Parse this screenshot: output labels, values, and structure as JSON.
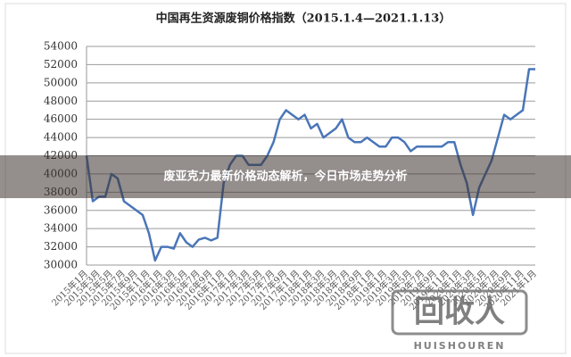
{
  "chart_data": {
    "type": "line",
    "title": "中国再生资源废铜价格指数（2015.1.4—2021.1.13）",
    "categories": [
      "2015年1月",
      null,
      "2015年3月",
      null,
      "2015年5月",
      null,
      "2015年7月",
      null,
      "2015年9月",
      null,
      "2015年11月",
      null,
      "2016年1月",
      null,
      "2016年3月",
      null,
      "2016年5月",
      null,
      "2016年7月",
      null,
      "2016年9月",
      null,
      "2016年11月",
      null,
      "2017年1月",
      null,
      "2017年3月",
      null,
      "2017年5月",
      null,
      "2017年7月",
      null,
      "2017年9月",
      null,
      "2017年11月",
      null,
      "2018年1月",
      null,
      "2018年3月",
      null,
      "2018年5月",
      null,
      "2018年7月",
      null,
      "2018年9月",
      null,
      "2018年11月",
      null,
      "2019年1月",
      null,
      "2019年3月",
      null,
      "2019年5月",
      null,
      "2019年7月",
      null,
      "2019年9月",
      null,
      "2019年11月",
      null,
      "2020年1月",
      null,
      "2020年3月",
      null,
      "2020年5月",
      null,
      "2020年7月",
      null,
      "2020年9月",
      null,
      "2020年11月",
      null,
      "2021年1月"
    ],
    "series": [
      {
        "name": "废铜价格指数",
        "color": "#4a76b8",
        "values": [
          42000,
          37000,
          37500,
          37500,
          40000,
          39500,
          37000,
          36500,
          36000,
          35500,
          33500,
          30500,
          32000,
          32000,
          31800,
          33500,
          32500,
          32000,
          32800,
          33000,
          32700,
          33000,
          39000,
          41000,
          42000,
          42000,
          41000,
          41000,
          41000,
          42000,
          43500,
          46000,
          47000,
          46500,
          46000,
          46500,
          45000,
          45500,
          44000,
          44500,
          45000,
          46000,
          44000,
          43500,
          43500,
          44000,
          43500,
          43000,
          43000,
          44000,
          44000,
          43500,
          42500,
          43000,
          43000,
          43000,
          43000,
          43000,
          43500,
          43500,
          41000,
          39000,
          35500,
          38500,
          40000,
          41500,
          44000,
          46500,
          46000,
          46500,
          47000,
          51500,
          51500
        ]
      }
    ],
    "ylim": [
      30000,
      54000
    ],
    "yticks": [
      30000,
      32000,
      34000,
      36000,
      38000,
      40000,
      42000,
      44000,
      46000,
      48000,
      50000,
      52000,
      54000
    ],
    "grid": true
  },
  "banner": {
    "text": "废亚克力最新价格动态解析，今日市场走势分析"
  },
  "watermark": {
    "logo": "回收人",
    "subtitle": "HUISHOUREN"
  }
}
